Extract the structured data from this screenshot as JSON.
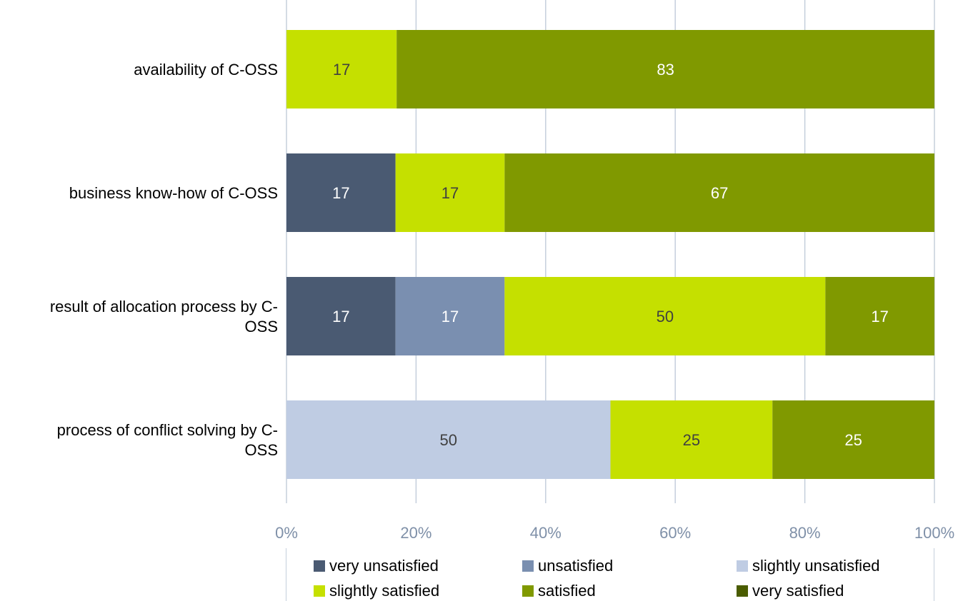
{
  "chart_data": {
    "type": "bar",
    "orientation": "horizontal",
    "stacked": "percent",
    "categories": [
      "availability of C-OSS",
      "business know-how of C-OSS",
      "result of allocation process by C-OSS",
      "process of conflict solving by C-OSS"
    ],
    "category_lines": [
      [
        "availability of C-OSS"
      ],
      [
        "business know-how of C-OSS"
      ],
      [
        "result of allocation process by C-",
        "OSS"
      ],
      [
        "process of conflict solving by C-",
        "OSS"
      ]
    ],
    "series": [
      {
        "name": "very unsatisfied",
        "color": "#4a5a72",
        "values": [
          0,
          17,
          17,
          0
        ]
      },
      {
        "name": "unsatisfied",
        "color": "#7a8fb0",
        "values": [
          0,
          0,
          17,
          0
        ]
      },
      {
        "name": "slightly unsatisfied",
        "color": "#bfcce3",
        "values": [
          0,
          0,
          0,
          50
        ]
      },
      {
        "name": "slightly satisfied",
        "color": "#c5e000",
        "values": [
          17,
          17,
          50,
          25
        ]
      },
      {
        "name": "satisfied",
        "color": "#809900",
        "values": [
          83,
          67,
          17,
          25
        ]
      },
      {
        "name": "very satisfied",
        "color": "#4a5c00",
        "values": [
          0,
          0,
          0,
          0
        ]
      }
    ],
    "data_label_colors": {
      "very unsatisfied": "#ffffff",
      "unsatisfied": "#ffffff",
      "slightly unsatisfied": "#404040",
      "slightly satisfied": "#404040",
      "satisfied": "#ffffff",
      "very satisfied": "#ffffff"
    },
    "xaxis": {
      "ticks": [
        "0%",
        "20%",
        "40%",
        "60%",
        "80%",
        "100%"
      ],
      "range": [
        0,
        100
      ],
      "tick_color": "#7f90a8"
    },
    "grid": true,
    "grid_color": "#c5cfdc",
    "legend_position": "bottom"
  }
}
